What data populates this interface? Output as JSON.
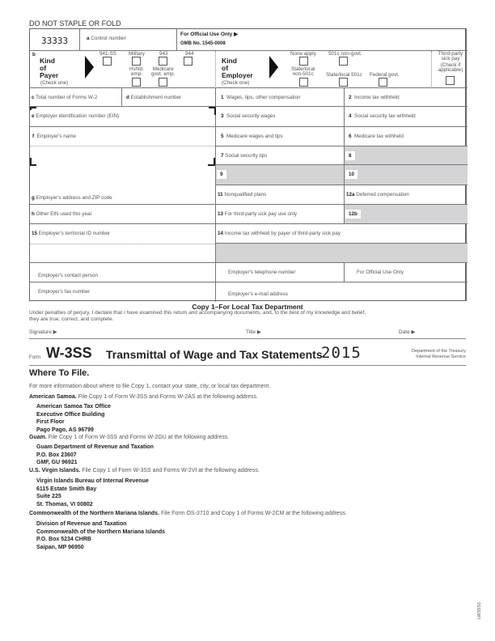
{
  "header": {
    "staple": "DO NOT STAPLE OR FOLD",
    "code": "33333",
    "control": "Control number",
    "control_letter": "a",
    "official": "For Official Use Only ▶",
    "omb": "OMB No. 1545-0008"
  },
  "payer": {
    "letter": "b",
    "title": "Kind\nof\nPayer",
    "check": "(Check one)",
    "opts": [
      "941-SS",
      "Military",
      "943",
      "944",
      "Hshld.\nemp.",
      "Medicare\ngovt. emp."
    ]
  },
  "employer": {
    "title": "Kind\nof\nEmployer",
    "check": "(Check one)",
    "opts": [
      "None apply",
      "501c non-govt.",
      "State/local\nnon-501c",
      "State/local 501c",
      "Federal govt."
    ]
  },
  "third_party": {
    "label": "Third-party\nsick pay",
    "sub": "(Check if\napplicable)"
  },
  "fields": {
    "c": "Total number of Forms W-2",
    "d": "Establishment number",
    "e": "Employer identification number (EIN)",
    "f": "Employer's name",
    "g": "Employer's address and ZIP code",
    "h": "Other EIN used this year",
    "f15": "Employer's territorial ID number",
    "b1": "Wages, tips, other compensation",
    "b2": "Income tax withheld",
    "b3": "Social security wages",
    "b4": "Social security tax withheld",
    "b5": "Medicare wages and tips",
    "b6": "Medicare tax withheld",
    "b7": "Social security tips",
    "b8": "8",
    "b9": "9",
    "b10": "10",
    "b11": "Nonqualified plans",
    "b12a": "Deferred compensation",
    "b13": "For third-party sick pay use only",
    "b12b": "12b",
    "b14": "Income tax withheld by payer of third-party sick pay",
    "contact": "Employer's contact person",
    "phone": "Employer's telephone number",
    "official2": "For Official Use Only",
    "fax": "Employer's fax number",
    "email": "Employer's e-mail address"
  },
  "copy": {
    "title": "Copy 1–For Local Tax Department",
    "perjury": "Under penalties of perjury, I declare that I have examined this return and accompanying documents, and, to the best of my knowledge and belief, they are true, correct, and complete.",
    "signature": "Signature ▶",
    "title_label": "Title ▶",
    "date": "Date ▶"
  },
  "form": {
    "form_word": "Form",
    "name": "W-3SS",
    "title": "Transmittal of Wage and Tax Statements",
    "year": "2015",
    "dept": "Department of the Treasury\nInternal Revenue Service"
  },
  "where": {
    "heading": "Where To File.",
    "intro": "For more information about where to file Copy 1, contact your state, city, or local tax department.",
    "sections": [
      {
        "name": "American Samoa.",
        "text": " File Copy 1 of Form W-3SS and Forms W-2AS at the following address.",
        "addr": "American Samoa Tax Office\nExecutive Office Building\nFirst Floor\nPago Pago, AS 96799"
      },
      {
        "name": "Guam.",
        "text": " File Copy 1 of Form W-3SS and Forms W-2GU at the following address.",
        "addr": "Guam Department of Revenue and Taxation\nP.O. Box 23607\nGMF, GU 96921"
      },
      {
        "name": "U.S. Virgin Islands.",
        "text": " File Copy 1 of Form W-3SS and Forms W-2VI at the following address.",
        "addr": "Virgin Islands Bureau of Internal Revenue\n6115 Estate Smith Bay\nSuite 225\nSt. Thomas, VI 00802"
      },
      {
        "name": "Commonwealth of the Northern Mariana Islands.",
        "text": " File Form OS-3710 and Copy 1 of Forms W-2CM at the following address.",
        "addr": "Division of Revenue and Taxation\nCommonwealth of the Northern Mariana Islands\nP.O. Box 5234 CHRB\nSaipan, MP 96950"
      }
    ]
  },
  "side_code": "LW3SS1"
}
